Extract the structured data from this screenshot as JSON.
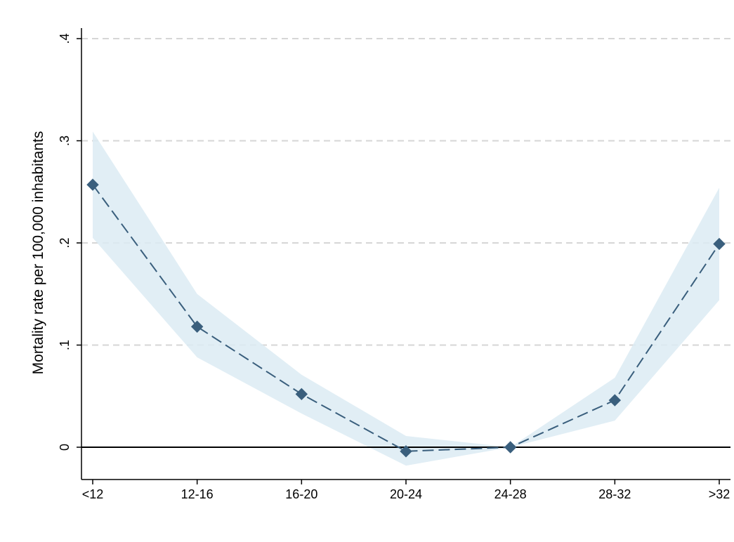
{
  "chart_data": {
    "type": "line",
    "title": "",
    "xlabel": "",
    "ylabel": "Mortality rate per 100,000 inhabitants",
    "categories": [
      "<12",
      "12-16",
      "16-20",
      "20-24",
      "24-28",
      "28-32",
      ">32"
    ],
    "ylim": [
      0,
      0.4
    ],
    "yticks": [
      0,
      0.1,
      0.2,
      0.3,
      0.4
    ],
    "ytick_labels": [
      "0",
      ".1",
      ".2",
      ".3",
      ".4"
    ],
    "grid": "horizontal dashed",
    "reference_line": 0,
    "series": [
      {
        "values": [
          0.257,
          0.118,
          0.052,
          -0.004,
          0.0,
          0.046,
          0.199
        ],
        "ci_lower": [
          0.205,
          0.088,
          0.033,
          -0.018,
          0.0,
          0.026,
          0.144
        ],
        "ci_upper": [
          0.309,
          0.15,
          0.071,
          0.011,
          0.0,
          0.068,
          0.254
        ],
        "marker": "diamond",
        "line_style": "dashed"
      }
    ],
    "colors": {
      "line": "#3a5f7d",
      "marker": "#3a5f7d",
      "band": "#dcebf3",
      "grid": "#d6d6d6",
      "axis": "#000000"
    }
  }
}
